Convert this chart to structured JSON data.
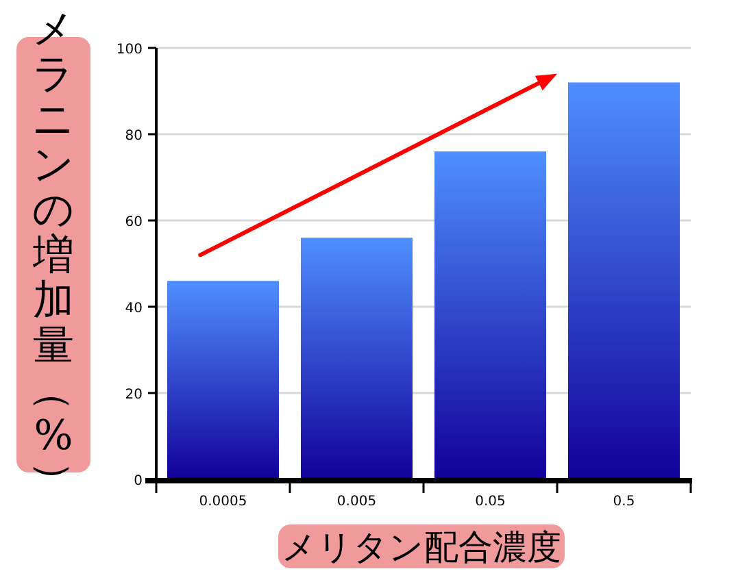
{
  "chart_data": {
    "type": "bar",
    "categories": [
      "0.0005",
      "0.005",
      "0.05",
      "0.5"
    ],
    "values": [
      46,
      56,
      76,
      92
    ],
    "color": "#4f8fff",
    "xlabel": "メリタン配合濃度",
    "ylabel": "メラニンの増加量（%）",
    "ylim": [
      0,
      100
    ],
    "yticks": [
      0,
      20,
      40,
      60,
      80,
      100
    ],
    "grid": "y"
  }
}
